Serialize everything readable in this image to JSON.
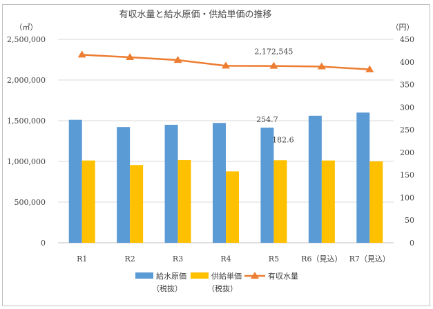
{
  "chart_data": {
    "type": "bar+line",
    "title": "有収水量と給水原価・供給単価の推移",
    "left_axis_unit": "（㎥）",
    "right_axis_unit": "（円）",
    "categories": [
      "R1",
      "R2",
      "R3",
      "R4",
      "R5",
      "R6（見込）",
      "R7（見込）"
    ],
    "left_ticks": [
      "0",
      "500,000",
      "1,000,000",
      "1,500,000",
      "2,000,000",
      "2,500,000"
    ],
    "right_ticks": [
      "0",
      "50",
      "100",
      "150",
      "200",
      "250",
      "300",
      "350",
      "400",
      "450"
    ],
    "ylim_left": [
      0,
      2500000
    ],
    "ylim_right": [
      0,
      450
    ],
    "series": [
      {
        "name": "給水原価",
        "name_line2": "（税抜）",
        "type": "bar",
        "axis": "right",
        "color": "#5b9bd5",
        "values": [
          272,
          256,
          261,
          265,
          254.7,
          281,
          288
        ]
      },
      {
        "name": "供給単価",
        "name_line2": "（税抜）",
        "type": "bar",
        "axis": "right",
        "color": "#ffc000",
        "values": [
          182,
          172,
          183,
          158,
          182.6,
          182,
          180
        ]
      },
      {
        "name": "有収水量",
        "type": "line",
        "axis": "left",
        "color": "#ed7d31",
        "values": [
          2310000,
          2280000,
          2245000,
          2175000,
          2172545,
          2165000,
          2130000
        ]
      }
    ],
    "data_labels": [
      {
        "series": 0,
        "index": 4,
        "text": "254.7"
      },
      {
        "series": 1,
        "index": 4,
        "text": "182.6"
      },
      {
        "series": 2,
        "index": 4,
        "text": "2,172,545"
      }
    ]
  }
}
